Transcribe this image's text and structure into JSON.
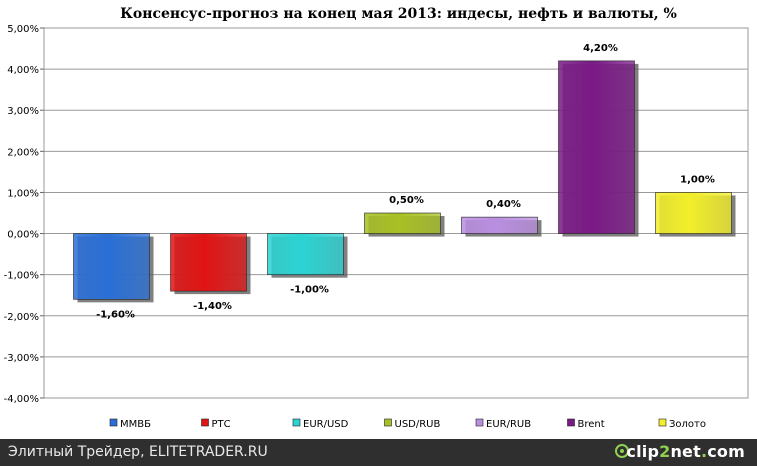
{
  "chart_data": {
    "type": "bar",
    "title": "Консенсус-прогноз на конец мая 2013: индесы, нефть и валюты, %",
    "categories": [
      "ММВБ",
      "РТС",
      "EUR/USD",
      "USD/RUB",
      "EUR/RUB",
      "Brent",
      "Золото"
    ],
    "values": [
      -1.6,
      -1.4,
      -1.0,
      0.5,
      0.4,
      4.2,
      1.0
    ],
    "data_labels": [
      "-1,60%",
      "-1,40%",
      "-1,00%",
      "0,50%",
      "0,40%",
      "4,20%",
      "1,00%"
    ],
    "colors": [
      "#2a6fd6",
      "#e01414",
      "#2cd3d3",
      "#a8c024",
      "#b98ee0",
      "#7a1a86",
      "#f2ee2a"
    ],
    "ylim": [
      -4,
      5
    ],
    "yticks": [
      5,
      4,
      3,
      2,
      1,
      0,
      -1,
      -2,
      -3,
      -4
    ],
    "ytick_labels": [
      "5,00%",
      "4,00%",
      "3,00%",
      "2,00%",
      "1,00%",
      "0,00%",
      "-1,00%",
      "-2,00%",
      "-3,00%",
      "-4,00%"
    ],
    "grid": true,
    "legend": "bottom",
    "xlabel": "",
    "ylabel": ""
  },
  "footer": {
    "text": "Элитный Трейдер, ELITETRADER.RU",
    "brand_part1": "clip",
    "brand_part2": "2",
    "brand_part3": "net",
    "brand_dot": ".",
    "brand_tld": "com"
  }
}
